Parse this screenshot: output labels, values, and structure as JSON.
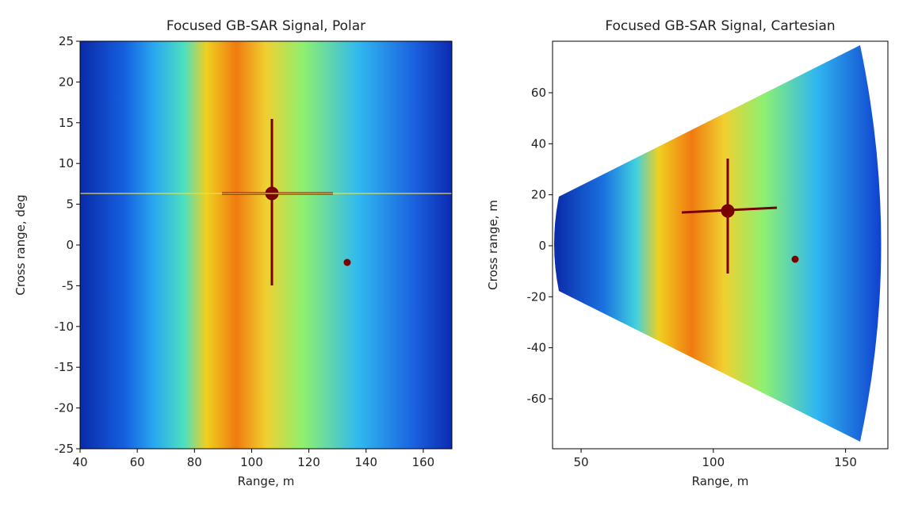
{
  "chart_data": [
    {
      "type": "image",
      "title": "Focused GB-SAR Signal, Polar",
      "x_label": "Range, m",
      "y_label": "Cross range, deg",
      "xlim": [
        40,
        170
      ],
      "ylim": [
        -25,
        25
      ],
      "xticks": [
        40,
        60,
        80,
        100,
        120,
        140,
        160
      ],
      "yticks": [
        -25,
        -20,
        -15,
        -10,
        -5,
        0,
        5,
        10,
        15,
        20,
        25
      ]
    },
    {
      "type": "image",
      "title": "Focused GB-SAR Signal, Cartesian",
      "x_label": "Range, m",
      "y_label": "Cross range, m",
      "xlim": [
        39.2,
        166
      ],
      "ylim": [
        -79.6,
        80.2
      ],
      "xticks": [
        50,
        100,
        150
      ],
      "yticks": [
        -60,
        -40,
        -20,
        0,
        20,
        40,
        60
      ]
    }
  ]
}
